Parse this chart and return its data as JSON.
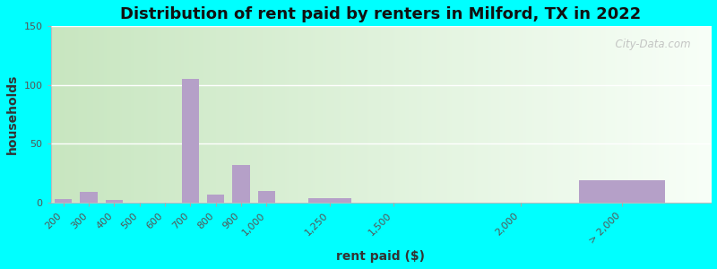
{
  "title": "Distribution of rent paid by renters in Milford, TX in 2022",
  "xlabel": "rent paid ($)",
  "ylabel": "households",
  "bar_color": "#b5a0c8",
  "categories": [
    "200",
    "300",
    "400",
    "500",
    "600",
    "700",
    "800",
    "900",
    "1,000",
    "1,250",
    "1,500",
    "2,000",
    "> 2,000"
  ],
  "x_positions": [
    200,
    300,
    400,
    500,
    600,
    700,
    800,
    900,
    1000,
    1250,
    1500,
    2000,
    2400
  ],
  "bar_widths": [
    80,
    80,
    80,
    80,
    80,
    80,
    80,
    80,
    80,
    200,
    200,
    200,
    400
  ],
  "values": [
    3,
    9,
    2,
    0,
    0,
    105,
    7,
    32,
    10,
    4,
    0,
    0,
    19
  ],
  "ylim": [
    0,
    150
  ],
  "yticks": [
    0,
    50,
    100,
    150
  ],
  "xlim": [
    150,
    2750
  ],
  "xtick_positions": [
    200,
    300,
    400,
    500,
    600,
    700,
    800,
    900,
    1000,
    1250,
    1500,
    2000,
    2400
  ],
  "xtick_labels": [
    "200",
    "300",
    "400",
    "500",
    "600",
    "700",
    "800",
    "900",
    "1,000",
    "1,250",
    "1,500",
    "2,000",
    "> 2,000"
  ],
  "bg_left_color": "#c8e6c0",
  "bg_right_color": "#f0faf0",
  "outer_bg": "#00ffff",
  "title_fontsize": 13,
  "axis_label_fontsize": 10,
  "tick_fontsize": 8,
  "watermark": "  City-Data.com"
}
